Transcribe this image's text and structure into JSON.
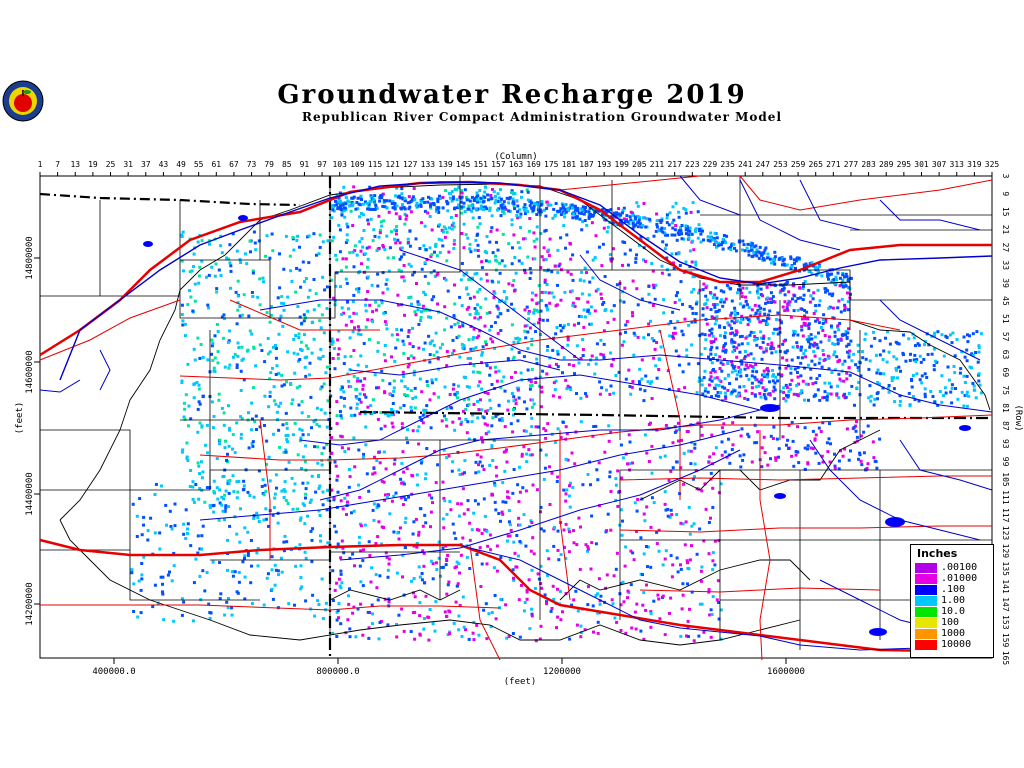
{
  "title": "Groundwater Recharge 2019",
  "subtitle": "Republican River Compact Administration Groundwater Model",
  "logo": {
    "name": "apple-seal-logo"
  },
  "axes": {
    "column_label": "(Column)",
    "row_label": "(Row)",
    "x_unit_label": "(feet)",
    "y_unit_label": "(feet)",
    "column_ticks": [
      "1",
      "7",
      "13",
      "19",
      "25",
      "31",
      "37",
      "43",
      "49",
      "55",
      "61",
      "67",
      "73",
      "79",
      "85",
      "91",
      "97",
      "103",
      "109",
      "115",
      "121",
      "127",
      "133",
      "139",
      "145",
      "151",
      "157",
      "163",
      "169",
      "175",
      "181",
      "187",
      "193",
      "199",
      "205",
      "211",
      "217",
      "223",
      "229",
      "235",
      "241",
      "247",
      "253",
      "259",
      "265",
      "271",
      "277",
      "283",
      "289",
      "295",
      "301",
      "307",
      "313",
      "319",
      "325"
    ],
    "row_ticks": [
      "3",
      "9",
      "15",
      "21",
      "27",
      "33",
      "39",
      "45",
      "51",
      "57",
      "63",
      "69",
      "75",
      "81",
      "87",
      "93",
      "99",
      "105",
      "111",
      "117",
      "123",
      "129",
      "135",
      "141",
      "147",
      "153",
      "159",
      "165"
    ],
    "x_ticks": [
      "400000.0",
      "800000.0",
      "1200000",
      "1600000"
    ],
    "y_ticks": [
      "14800000",
      "14600000",
      "14400000",
      "14200000"
    ]
  },
  "legend": {
    "title": "Inches",
    "entries": [
      {
        "label": ".00100",
        "color": "#b400e6"
      },
      {
        "label": ".01000",
        "color": "#e600e6"
      },
      {
        "label": ".100",
        "color": "#0000ff"
      },
      {
        "label": "1.00",
        "color": "#00c8ff"
      },
      {
        "label": "10.0",
        "color": "#00e600"
      },
      {
        "label": "100",
        "color": "#e6e600"
      },
      {
        "label": "1000",
        "color": "#ff9600"
      },
      {
        "label": "10000",
        "color": "#ff0000"
      }
    ]
  },
  "colors": {
    "roads": "#e60000",
    "rivers": "#0000cc",
    "county_lines": "#000000",
    "state_line": "#000000",
    "recharge_low": "#0050ff",
    "recharge_mid": "#00c8ff",
    "recharge_high": "#00e6a0",
    "recharge_trace": "#e600e6"
  }
}
